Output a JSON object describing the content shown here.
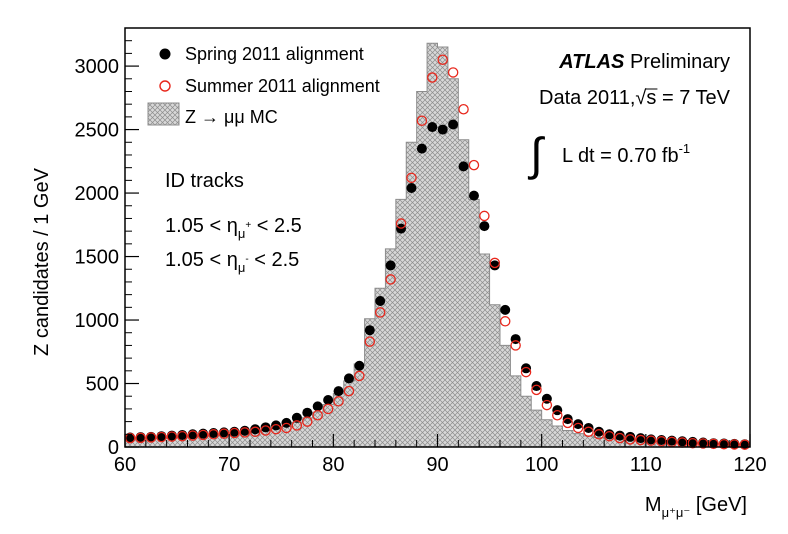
{
  "chart_data": {
    "type": "histogram+scatter",
    "title": "",
    "xlabel": {
      "main": "M",
      "sub": "μ⁺μ⁻",
      "unit": "[GeV]"
    },
    "ylabel": "Z candidates / 1 GeV",
    "xlim": [
      60,
      120
    ],
    "ylim": [
      0,
      3300
    ],
    "x_ticks": [
      60,
      70,
      80,
      90,
      100,
      110,
      120
    ],
    "y_ticks": [
      0,
      500,
      1000,
      1500,
      2000,
      2500,
      3000
    ],
    "bins_x": [
      60,
      61,
      62,
      63,
      64,
      65,
      66,
      67,
      68,
      69,
      70,
      71,
      72,
      73,
      74,
      75,
      76,
      77,
      78,
      79,
      80,
      81,
      82,
      83,
      84,
      85,
      86,
      87,
      88,
      89,
      90,
      91,
      92,
      93,
      94,
      95,
      96,
      97,
      98,
      99,
      100,
      101,
      102,
      103,
      104,
      105,
      106,
      107,
      108,
      109,
      110,
      111,
      112,
      113,
      114,
      115,
      116,
      117,
      118,
      119
    ],
    "series": [
      {
        "name": "Z → μμ MC",
        "kind": "histogram",
        "values": [
          60,
          62,
          65,
          68,
          72,
          76,
          80,
          85,
          90,
          95,
          100,
          108,
          118,
          130,
          145,
          165,
          195,
          230,
          275,
          335,
          420,
          520,
          655,
          1010,
          1250,
          1560,
          1950,
          2400,
          2800,
          3180,
          3150,
          2900,
          2420,
          1950,
          1520,
          1120,
          800,
          560,
          400,
          290,
          215,
          165,
          130,
          105,
          88,
          75,
          65,
          58,
          52,
          47,
          43,
          40,
          37,
          35,
          33,
          31,
          29,
          27,
          26,
          25
        ]
      },
      {
        "name": "Spring 2011 alignment",
        "kind": "points",
        "marker": "filled-circle",
        "values": [
          75,
          78,
          80,
          85,
          90,
          95,
          100,
          105,
          110,
          115,
          120,
          128,
          140,
          155,
          170,
          190,
          230,
          270,
          320,
          370,
          440,
          540,
          640,
          920,
          1150,
          1430,
          1720,
          2040,
          2350,
          2520,
          2500,
          2540,
          2210,
          1980,
          1740,
          1430,
          1080,
          850,
          620,
          480,
          380,
          290,
          220,
          180,
          150,
          120,
          100,
          90,
          80,
          70,
          60,
          55,
          50,
          45,
          40,
          35,
          30,
          28,
          25,
          22
        ]
      },
      {
        "name": "Summer 2011 alignment",
        "kind": "points",
        "marker": "open-circle",
        "values": [
          70,
          72,
          75,
          78,
          82,
          85,
          90,
          95,
          100,
          105,
          110,
          115,
          120,
          130,
          140,
          150,
          170,
          200,
          250,
          300,
          360,
          440,
          560,
          830,
          1060,
          1320,
          1760,
          2120,
          2570,
          2910,
          3050,
          2950,
          2660,
          2220,
          1820,
          1450,
          990,
          800,
          590,
          450,
          330,
          250,
          190,
          150,
          120,
          100,
          85,
          70,
          60,
          55,
          50,
          45,
          40,
          35,
          30,
          28,
          25,
          22,
          20,
          18
        ]
      }
    ],
    "legend": [
      {
        "label": "Spring 2011 alignment",
        "marker": "filled-circle"
      },
      {
        "label": "Summer 2011 alignment",
        "marker": "open-circle"
      },
      {
        "label": "Z → μμ MC",
        "marker": "hatched-box"
      }
    ],
    "legend_position": "top-left",
    "annotations": {
      "experiment": "ATLAS",
      "status": "Preliminary",
      "dataset_prefix": "Data 2011,",
      "sqrt_symbol": "√",
      "energy_var": "s",
      "energy": "= 7 TeV",
      "lumi_text": "L dt = 0.70 fb",
      "lumi_exp": "-1",
      "integral_symbol": "∫",
      "tracks": "ID tracks",
      "eta_cut_low": "1.05 < η",
      "eta_cut_high": "< 2.5",
      "eta_sub_plus": "μ",
      "eta_sup_plus": "+",
      "eta_sub_minus": "μ",
      "eta_sup_minus": "-"
    },
    "colors": {
      "filled": "#000000",
      "open": "#e8271c",
      "hist_fill": "#d8d8d8",
      "hist_hatch": "#8c8c8c"
    }
  }
}
